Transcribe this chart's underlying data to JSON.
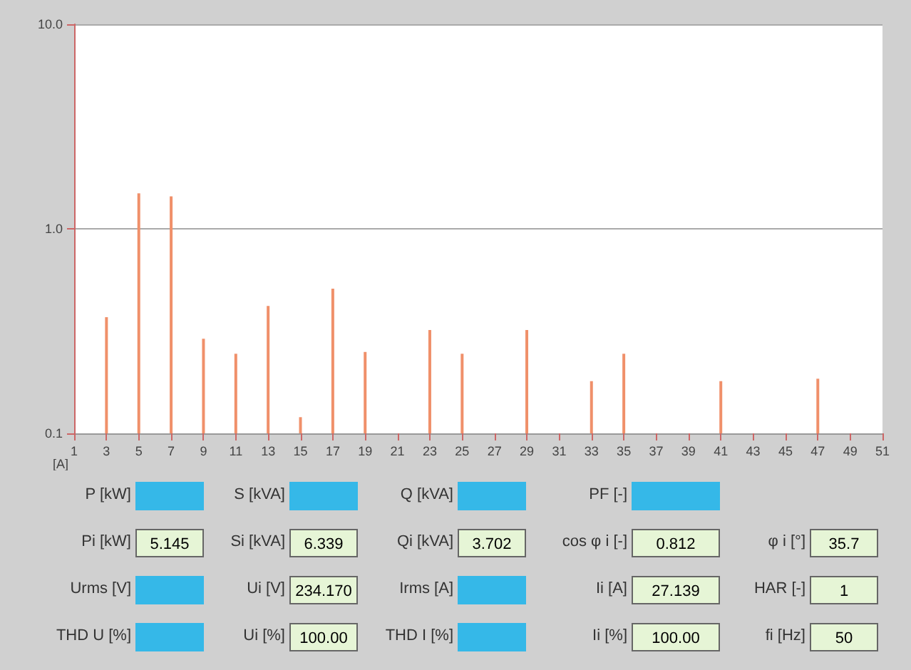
{
  "chart_data": {
    "type": "bar",
    "ylabel": "[A]",
    "log": "y",
    "grid": "y",
    "color": "#f0906a",
    "x": [
      3,
      5,
      7,
      9,
      11,
      13,
      15,
      17,
      19,
      23,
      25,
      29,
      33,
      35,
      41,
      47
    ],
    "values": [
      0.37,
      1.49,
      1.44,
      0.29,
      0.245,
      0.42,
      0.12,
      0.51,
      0.25,
      0.32,
      0.245,
      0.32,
      0.18,
      0.245,
      0.18,
      0.185
    ],
    "xlim": [
      1,
      51
    ],
    "xticks": [
      1,
      3,
      5,
      7,
      9,
      11,
      13,
      15,
      17,
      19,
      21,
      23,
      25,
      27,
      29,
      31,
      33,
      35,
      37,
      39,
      41,
      43,
      45,
      47,
      49,
      51
    ],
    "ylim": [
      0.1,
      10
    ],
    "yticks": [
      {
        "value": 0.1,
        "label": "0.1"
      },
      {
        "value": 1,
        "label": "1.0"
      },
      {
        "value": 10,
        "label": "10.0"
      }
    ],
    "annotations": [
      "P [kW]",
      "S [kVA]",
      "Q [kVA]",
      "PF [-]",
      "Pi [kW]",
      "5.145",
      "Si [kVA]",
      "6.339",
      "Qi [kVA]",
      "3.702",
      "cos φ i [-]",
      "0.812",
      "φ i [°]",
      "35.7",
      "Urms [V]",
      "Ui [V]",
      "234.170",
      "Irms [A]",
      "Ii [A]",
      "27.139",
      "HAR [-]",
      "1",
      "THD U [%]",
      "Ui [%]",
      "100.00",
      "THD I [%]",
      "Ii [%]",
      "100.00",
      "fi [Hz]",
      "50"
    ]
  }
}
